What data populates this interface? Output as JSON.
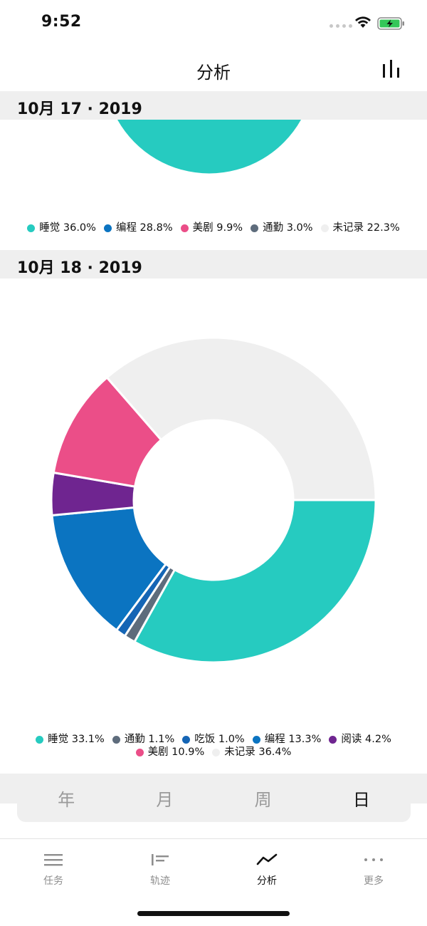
{
  "status_bar": {
    "time": "9:52"
  },
  "nav": {
    "title": "分析",
    "chart_icon": "bar-chart-icon"
  },
  "sections": [
    {
      "date": "10月 17 · 2019",
      "chart_data": {
        "type": "pie",
        "slices": [
          {
            "label": "睡觉",
            "value": 36.0,
            "color": "#26CBC0"
          },
          {
            "label": "编程",
            "value": 28.8,
            "color": "#0B74C1"
          },
          {
            "label": "美剧",
            "value": 9.9,
            "color": "#EB4E88"
          },
          {
            "label": "通勤",
            "value": 3.0,
            "color": "#5E6C7C"
          },
          {
            "label": "未记录",
            "value": 22.3,
            "color": "#EFEFEF"
          }
        ],
        "legend": [
          "睡觉 36.0%",
          "编程 28.8%",
          "美剧 9.9%",
          "通勤 3.0%",
          "未记录 22.3%"
        ]
      }
    },
    {
      "date": "10月 18 · 2019",
      "chart_data": {
        "type": "pie",
        "slices": [
          {
            "label": "睡觉",
            "value": 33.1,
            "color": "#26CBC0"
          },
          {
            "label": "通勤",
            "value": 1.1,
            "color": "#5E6C7C"
          },
          {
            "label": "吃饭",
            "value": 1.0,
            "color": "#1565B5"
          },
          {
            "label": "编程",
            "value": 13.3,
            "color": "#0B74C1"
          },
          {
            "label": "阅读",
            "value": 4.2,
            "color": "#6F2590"
          },
          {
            "label": "美剧",
            "value": 10.9,
            "color": "#EB4E88"
          },
          {
            "label": "未记录",
            "value": 36.4,
            "color": "#EFEFEF"
          }
        ],
        "legend_rows": [
          [
            "睡觉 33.1%",
            "通勤 1.1%",
            "吃饭 1.0%",
            "编程 13.3%",
            "阅读 4.2%"
          ],
          [
            "美剧 10.9%",
            "未记录 36.4%"
          ]
        ]
      }
    }
  ],
  "period_selector": {
    "options": [
      "年",
      "月",
      "周",
      "日"
    ],
    "selected": "日"
  },
  "tabs": [
    {
      "label": "任务",
      "icon": "list-icon"
    },
    {
      "label": "轨迹",
      "icon": "timeline-icon"
    },
    {
      "label": "分析",
      "icon": "trend-line-icon",
      "active": true
    },
    {
      "label": "更多",
      "icon": "more-dots-icon"
    }
  ]
}
